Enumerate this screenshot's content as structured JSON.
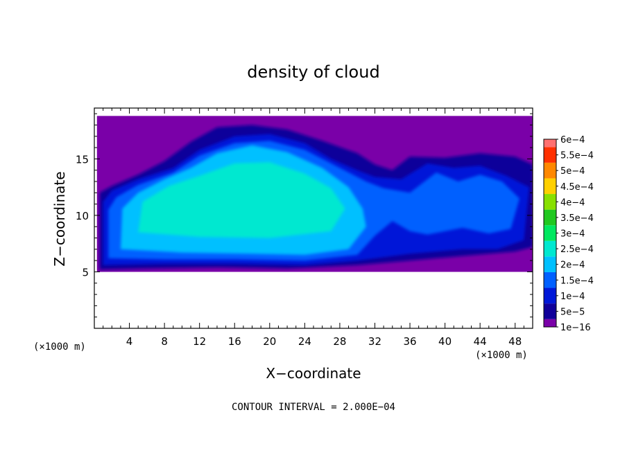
{
  "chart_data": {
    "type": "heatmap",
    "title": "density of cloud",
    "xlabel": "X−coordinate",
    "ylabel": "Z−coordinate",
    "x_unit": "(×1000 m)",
    "y_unit": "(×1000 m)",
    "xlim": [
      0,
      50
    ],
    "ylim": [
      0,
      19.5
    ],
    "x_ticks": [
      4,
      8,
      12,
      16,
      20,
      24,
      28,
      32,
      36,
      40,
      44,
      48
    ],
    "y_ticks": [
      5,
      10,
      15
    ],
    "footer": "CONTOUR INTERVAL = 2.000E−04",
    "colorbar": {
      "labels": [
        "1e−16",
        "5e−5",
        "1e−4",
        "1.5e−4",
        "2e−4",
        "2.5e−4",
        "3e−4",
        "3.5e−4",
        "4e−4",
        "4.5e−4",
        "5e−4",
        "5.5e−4",
        "6e−4"
      ],
      "colors": [
        "#7a00a8",
        "#10009a",
        "#0018d8",
        "#0060ff",
        "#00c0ff",
        "#00e8d0",
        "#00e860",
        "#20c820",
        "#88e000",
        "#ffd000",
        "#ff8800",
        "#ff3000",
        "#ff7070"
      ]
    },
    "regions": [
      {
        "level": 0,
        "color": "#7a00a8",
        "points": [
          [
            0.3,
            5.0
          ],
          [
            50,
            5.0
          ],
          [
            50,
            18.8
          ],
          [
            0.3,
            18.8
          ]
        ]
      },
      {
        "level": 1,
        "color": "#10009a",
        "points": [
          [
            0.6,
            5.2
          ],
          [
            6,
            5.3
          ],
          [
            14,
            5.4
          ],
          [
            22,
            5.3
          ],
          [
            30,
            5.6
          ],
          [
            36,
            6.0
          ],
          [
            42,
            6.4
          ],
          [
            48,
            6.8
          ],
          [
            50,
            7.2
          ],
          [
            50,
            14.5
          ],
          [
            48,
            15.2
          ],
          [
            44,
            15.5
          ],
          [
            40,
            15.1
          ],
          [
            36,
            15.2
          ],
          [
            34,
            14.0
          ],
          [
            32,
            14.5
          ],
          [
            30,
            15.5
          ],
          [
            26,
            16.6
          ],
          [
            22,
            17.6
          ],
          [
            18,
            18.0
          ],
          [
            14,
            17.8
          ],
          [
            11,
            16.5
          ],
          [
            8,
            14.8
          ],
          [
            5,
            13.6
          ],
          [
            2,
            12.6
          ],
          [
            0.6,
            12.0
          ]
        ]
      },
      {
        "level": 2,
        "color": "#0018d8",
        "points": [
          [
            1.0,
            5.6
          ],
          [
            8,
            5.7
          ],
          [
            16,
            5.7
          ],
          [
            24,
            5.6
          ],
          [
            30,
            6.0
          ],
          [
            36,
            6.6
          ],
          [
            42,
            7.0
          ],
          [
            46,
            7.0
          ],
          [
            49,
            7.8
          ],
          [
            49.6,
            12.5
          ],
          [
            47,
            13.5
          ],
          [
            44,
            14.4
          ],
          [
            41,
            14.2
          ],
          [
            38,
            14.6
          ],
          [
            35,
            13.2
          ],
          [
            32,
            13.4
          ],
          [
            30,
            14.0
          ],
          [
            27,
            15.0
          ],
          [
            24,
            16.4
          ],
          [
            20,
            17.2
          ],
          [
            16,
            17.0
          ],
          [
            12,
            15.8
          ],
          [
            9,
            14.2
          ],
          [
            5,
            13.2
          ],
          [
            2,
            12.2
          ],
          [
            1.0,
            11.2
          ]
        ]
      },
      {
        "level": 3,
        "color": "#0060ff",
        "points": [
          [
            1.6,
            6.2
          ],
          [
            8,
            6.1
          ],
          [
            16,
            6.1
          ],
          [
            24,
            6.0
          ],
          [
            30,
            6.5
          ],
          [
            32,
            8.2
          ],
          [
            34,
            9.5
          ],
          [
            36,
            8.6
          ],
          [
            38,
            8.3
          ],
          [
            42,
            8.9
          ],
          [
            45,
            8.4
          ],
          [
            47.5,
            8.8
          ],
          [
            48.5,
            11.5
          ],
          [
            46.5,
            13.0
          ],
          [
            44,
            13.6
          ],
          [
            41.5,
            13.0
          ],
          [
            39,
            13.8
          ],
          [
            36,
            12.0
          ],
          [
            33,
            12.4
          ],
          [
            31,
            13.0
          ],
          [
            28,
            14.2
          ],
          [
            24,
            15.8
          ],
          [
            20,
            16.6
          ],
          [
            16,
            16.4
          ],
          [
            12,
            15.3
          ],
          [
            9,
            13.8
          ],
          [
            5,
            12.7
          ],
          [
            2.5,
            11.6
          ],
          [
            1.6,
            10.5
          ]
        ]
      },
      {
        "level": 4,
        "color": "#00c0ff",
        "points": [
          [
            3,
            7.0
          ],
          [
            10,
            6.7
          ],
          [
            18,
            6.6
          ],
          [
            24,
            6.5
          ],
          [
            29,
            7.0
          ],
          [
            31,
            9.0
          ],
          [
            30.6,
            10.6
          ],
          [
            29,
            12.5
          ],
          [
            26,
            14.2
          ],
          [
            22,
            15.6
          ],
          [
            18,
            16.2
          ],
          [
            14,
            15.5
          ],
          [
            11,
            14.2
          ],
          [
            8,
            13.2
          ],
          [
            5,
            12.0
          ],
          [
            3.2,
            10.6
          ]
        ]
      },
      {
        "level": 5,
        "color": "#00e8d0",
        "points": [
          [
            5,
            8.5
          ],
          [
            12,
            8.1
          ],
          [
            20,
            8.0
          ],
          [
            27,
            8.6
          ],
          [
            28.6,
            10.6
          ],
          [
            27,
            12.4
          ],
          [
            24,
            13.7
          ],
          [
            20,
            14.7
          ],
          [
            16,
            14.6
          ],
          [
            12,
            13.5
          ],
          [
            8.5,
            12.6
          ],
          [
            5.5,
            11.2
          ]
        ]
      }
    ]
  }
}
